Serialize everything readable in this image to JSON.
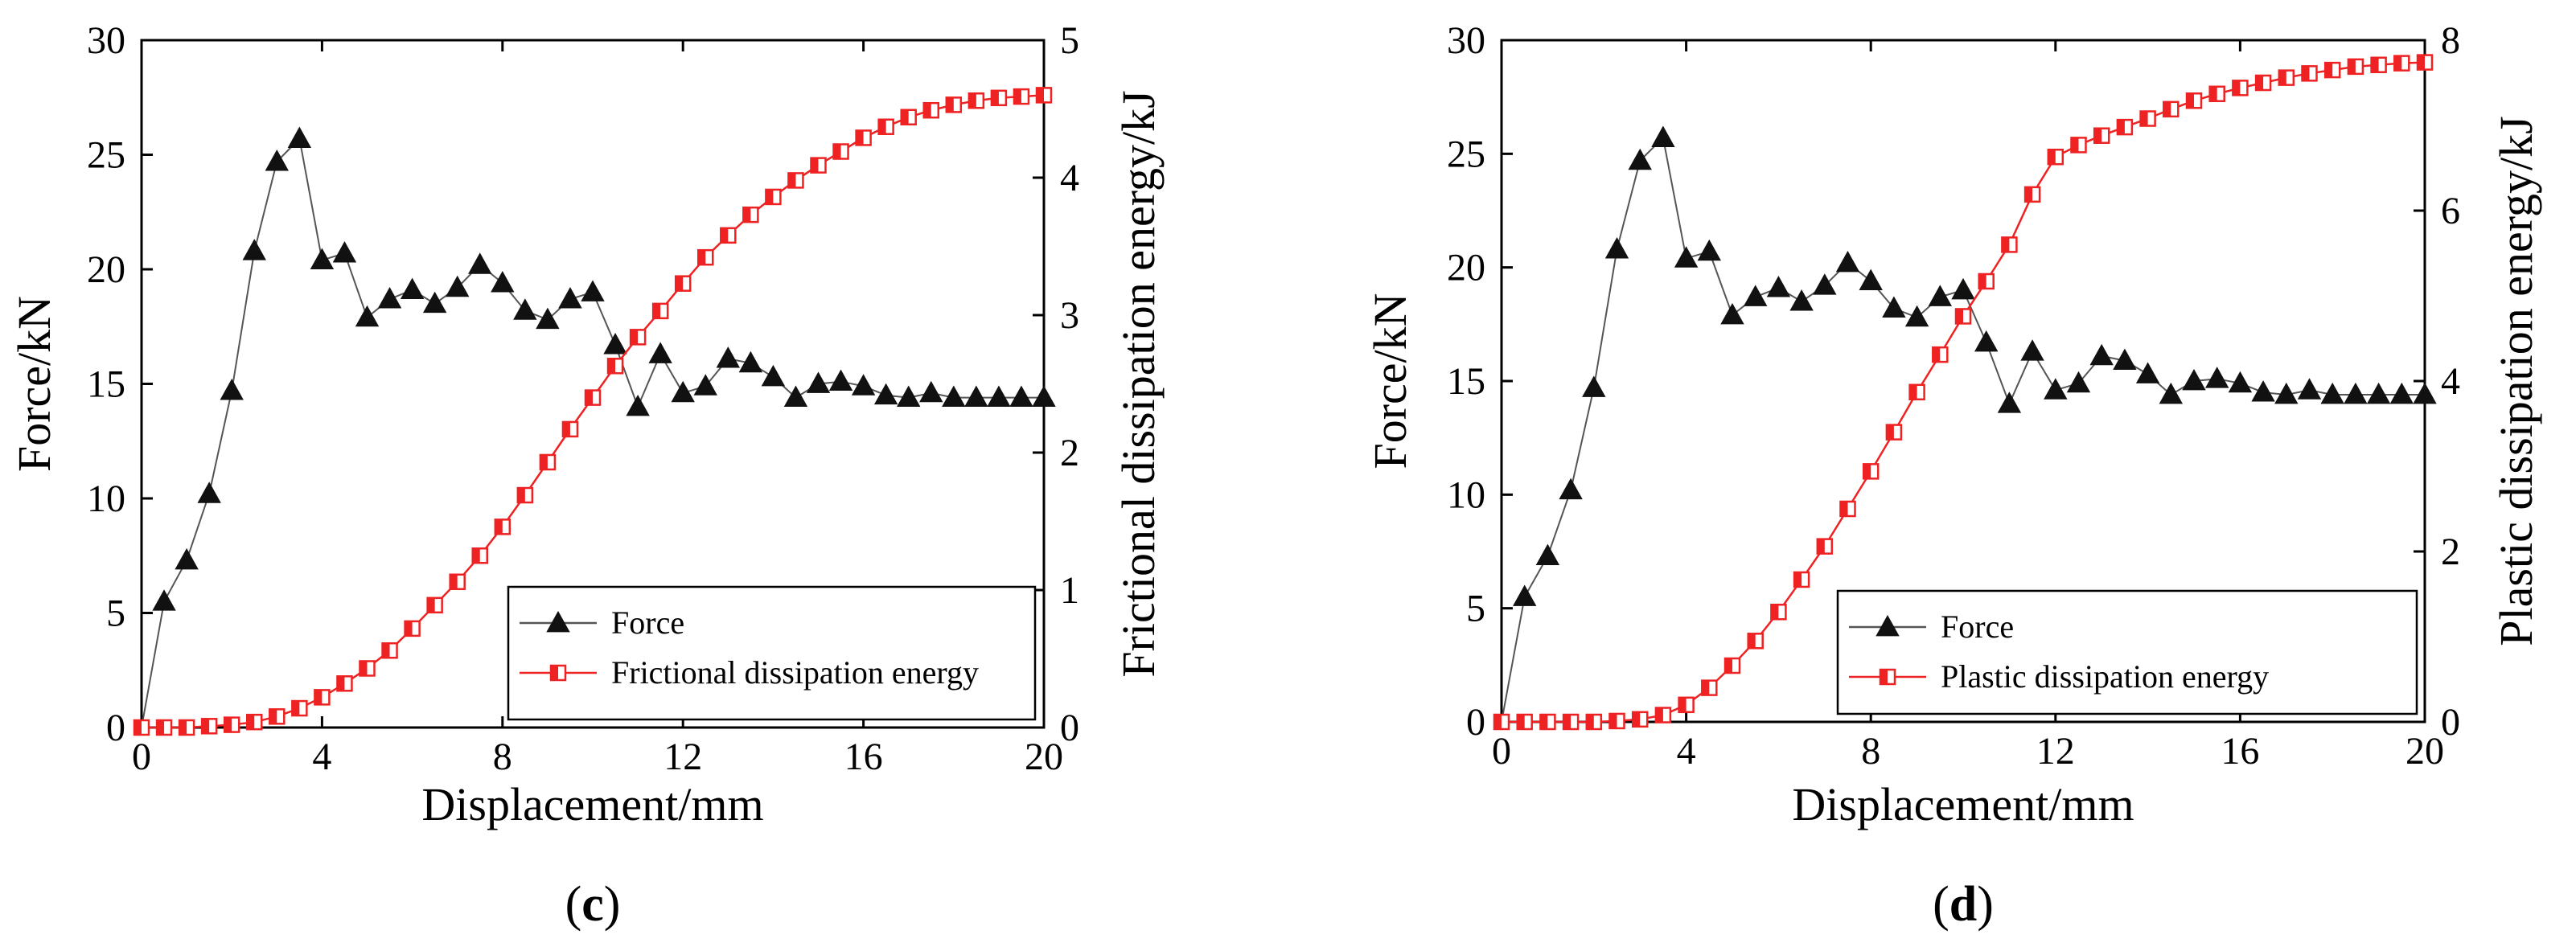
{
  "chart_data": [
    {
      "type": "line",
      "panel_label": "c",
      "xlabel": "Displacement/mm",
      "ylabel": "Force/kN",
      "y2label": "Frictional dissipation energy/kJ",
      "xlim": [
        0,
        20
      ],
      "ylim": [
        0,
        30
      ],
      "y2lim": [
        0,
        5
      ],
      "xticks": [
        "0",
        "4",
        "8",
        "12",
        "16",
        "20"
      ],
      "yticks": [
        "0",
        "5",
        "10",
        "15",
        "20",
        "25",
        "30"
      ],
      "y2ticks": [
        "0",
        "1",
        "2",
        "3",
        "4",
        "5"
      ],
      "legend_position": "bottom-right",
      "series": [
        {
          "name": "Force",
          "axis": "left",
          "color": "#555555",
          "marker": "triangle",
          "x": [
            0.5,
            1.0,
            1.5,
            2.0,
            2.5,
            3.0,
            3.5,
            4.0,
            4.5,
            5.0,
            5.5,
            6.0,
            6.5,
            7.0,
            7.5,
            8.0,
            8.5,
            9.0,
            9.5,
            10.0,
            10.5,
            11.0,
            11.5,
            12.0,
            12.5,
            13.0,
            13.5,
            14.0,
            14.5,
            15.0,
            15.5,
            16.0,
            16.5,
            17.0,
            17.5,
            18.0,
            18.5,
            19.0,
            19.5,
            20.0
          ],
          "values": [
            5.5,
            7.3,
            10.2,
            14.7,
            20.8,
            24.7,
            25.7,
            20.4,
            20.7,
            17.9,
            18.7,
            19.1,
            18.5,
            19.2,
            20.2,
            19.4,
            18.2,
            17.8,
            18.7,
            19.0,
            16.7,
            14.0,
            16.3,
            14.6,
            14.9,
            16.1,
            15.9,
            15.3,
            14.4,
            15.0,
            15.1,
            14.9,
            14.5,
            14.4,
            14.6,
            14.4,
            14.4,
            14.4,
            14.4,
            14.4
          ]
        },
        {
          "name": "Frictional dissipation energy",
          "axis": "right",
          "color": "#ee2222",
          "marker": "half-square",
          "x": [
            0.0,
            0.5,
            1.0,
            1.5,
            2.0,
            2.5,
            3.0,
            3.5,
            4.0,
            4.5,
            5.0,
            5.5,
            6.0,
            6.5,
            7.0,
            7.5,
            8.0,
            8.5,
            9.0,
            9.5,
            10.0,
            10.5,
            11.0,
            11.5,
            12.0,
            12.5,
            13.0,
            13.5,
            14.0,
            14.5,
            15.0,
            15.5,
            16.0,
            16.5,
            17.0,
            17.5,
            18.0,
            18.5,
            19.0,
            19.5,
            20.0
          ],
          "values": [
            0.0,
            0.0,
            0.0,
            0.01,
            0.02,
            0.04,
            0.08,
            0.14,
            0.22,
            0.32,
            0.43,
            0.56,
            0.72,
            0.89,
            1.06,
            1.25,
            1.46,
            1.69,
            1.93,
            2.17,
            2.4,
            2.63,
            2.84,
            3.03,
            3.23,
            3.42,
            3.58,
            3.73,
            3.86,
            3.98,
            4.09,
            4.19,
            4.29,
            4.37,
            4.44,
            4.49,
            4.53,
            4.56,
            4.58,
            4.59,
            4.6
          ]
        }
      ]
    },
    {
      "type": "line",
      "panel_label": "d",
      "xlabel": "Displacement/mm",
      "ylabel": "Force/kN",
      "y2label": "Plastic dissipation energy/kJ",
      "xlim": [
        0,
        20
      ],
      "ylim": [
        0,
        30
      ],
      "y2lim": [
        0,
        8
      ],
      "xticks": [
        "0",
        "4",
        "8",
        "12",
        "16",
        "20"
      ],
      "yticks": [
        "0",
        "5",
        "10",
        "15",
        "20",
        "25",
        "30"
      ],
      "y2ticks": [
        "0",
        "2",
        "4",
        "6",
        "8"
      ],
      "legend_position": "bottom-right",
      "series": [
        {
          "name": "Force",
          "axis": "left",
          "color": "#555555",
          "marker": "triangle",
          "x": [
            0.5,
            1.0,
            1.5,
            2.0,
            2.5,
            3.0,
            3.5,
            4.0,
            4.5,
            5.0,
            5.5,
            6.0,
            6.5,
            7.0,
            7.5,
            8.0,
            8.5,
            9.0,
            9.5,
            10.0,
            10.5,
            11.0,
            11.5,
            12.0,
            12.5,
            13.0,
            13.5,
            14.0,
            14.5,
            15.0,
            15.5,
            16.0,
            16.5,
            17.0,
            17.5,
            18.0,
            18.5,
            19.0,
            19.5,
            20.0
          ],
          "values": [
            5.5,
            7.3,
            10.2,
            14.7,
            20.8,
            24.7,
            25.7,
            20.4,
            20.7,
            17.9,
            18.7,
            19.1,
            18.5,
            19.2,
            20.2,
            19.4,
            18.2,
            17.8,
            18.7,
            19.0,
            16.7,
            14.0,
            16.3,
            14.6,
            14.9,
            16.1,
            15.9,
            15.3,
            14.4,
            15.0,
            15.1,
            14.9,
            14.5,
            14.4,
            14.6,
            14.4,
            14.4,
            14.4,
            14.4,
            14.4
          ]
        },
        {
          "name": "Plastic dissipation energy",
          "axis": "right",
          "color": "#ee2222",
          "marker": "half-square",
          "x": [
            0.0,
            0.5,
            1.0,
            1.5,
            2.0,
            2.5,
            3.0,
            3.5,
            4.0,
            4.5,
            5.0,
            5.5,
            6.0,
            6.5,
            7.0,
            7.5,
            8.0,
            8.5,
            9.0,
            9.5,
            10.0,
            10.5,
            11.0,
            11.5,
            12.0,
            12.5,
            13.0,
            13.5,
            14.0,
            14.5,
            15.0,
            15.5,
            16.0,
            16.5,
            17.0,
            17.5,
            18.0,
            18.5,
            19.0,
            19.5,
            20.0
          ],
          "values": [
            0.0,
            0.0,
            0.0,
            0.0,
            0.0,
            0.01,
            0.03,
            0.08,
            0.2,
            0.4,
            0.66,
            0.95,
            1.29,
            1.67,
            2.06,
            2.5,
            2.94,
            3.4,
            3.87,
            4.31,
            4.76,
            5.17,
            5.6,
            6.19,
            6.63,
            6.77,
            6.88,
            6.98,
            7.08,
            7.19,
            7.29,
            7.37,
            7.44,
            7.5,
            7.56,
            7.61,
            7.65,
            7.69,
            7.71,
            7.73,
            7.74
          ]
        }
      ]
    }
  ]
}
